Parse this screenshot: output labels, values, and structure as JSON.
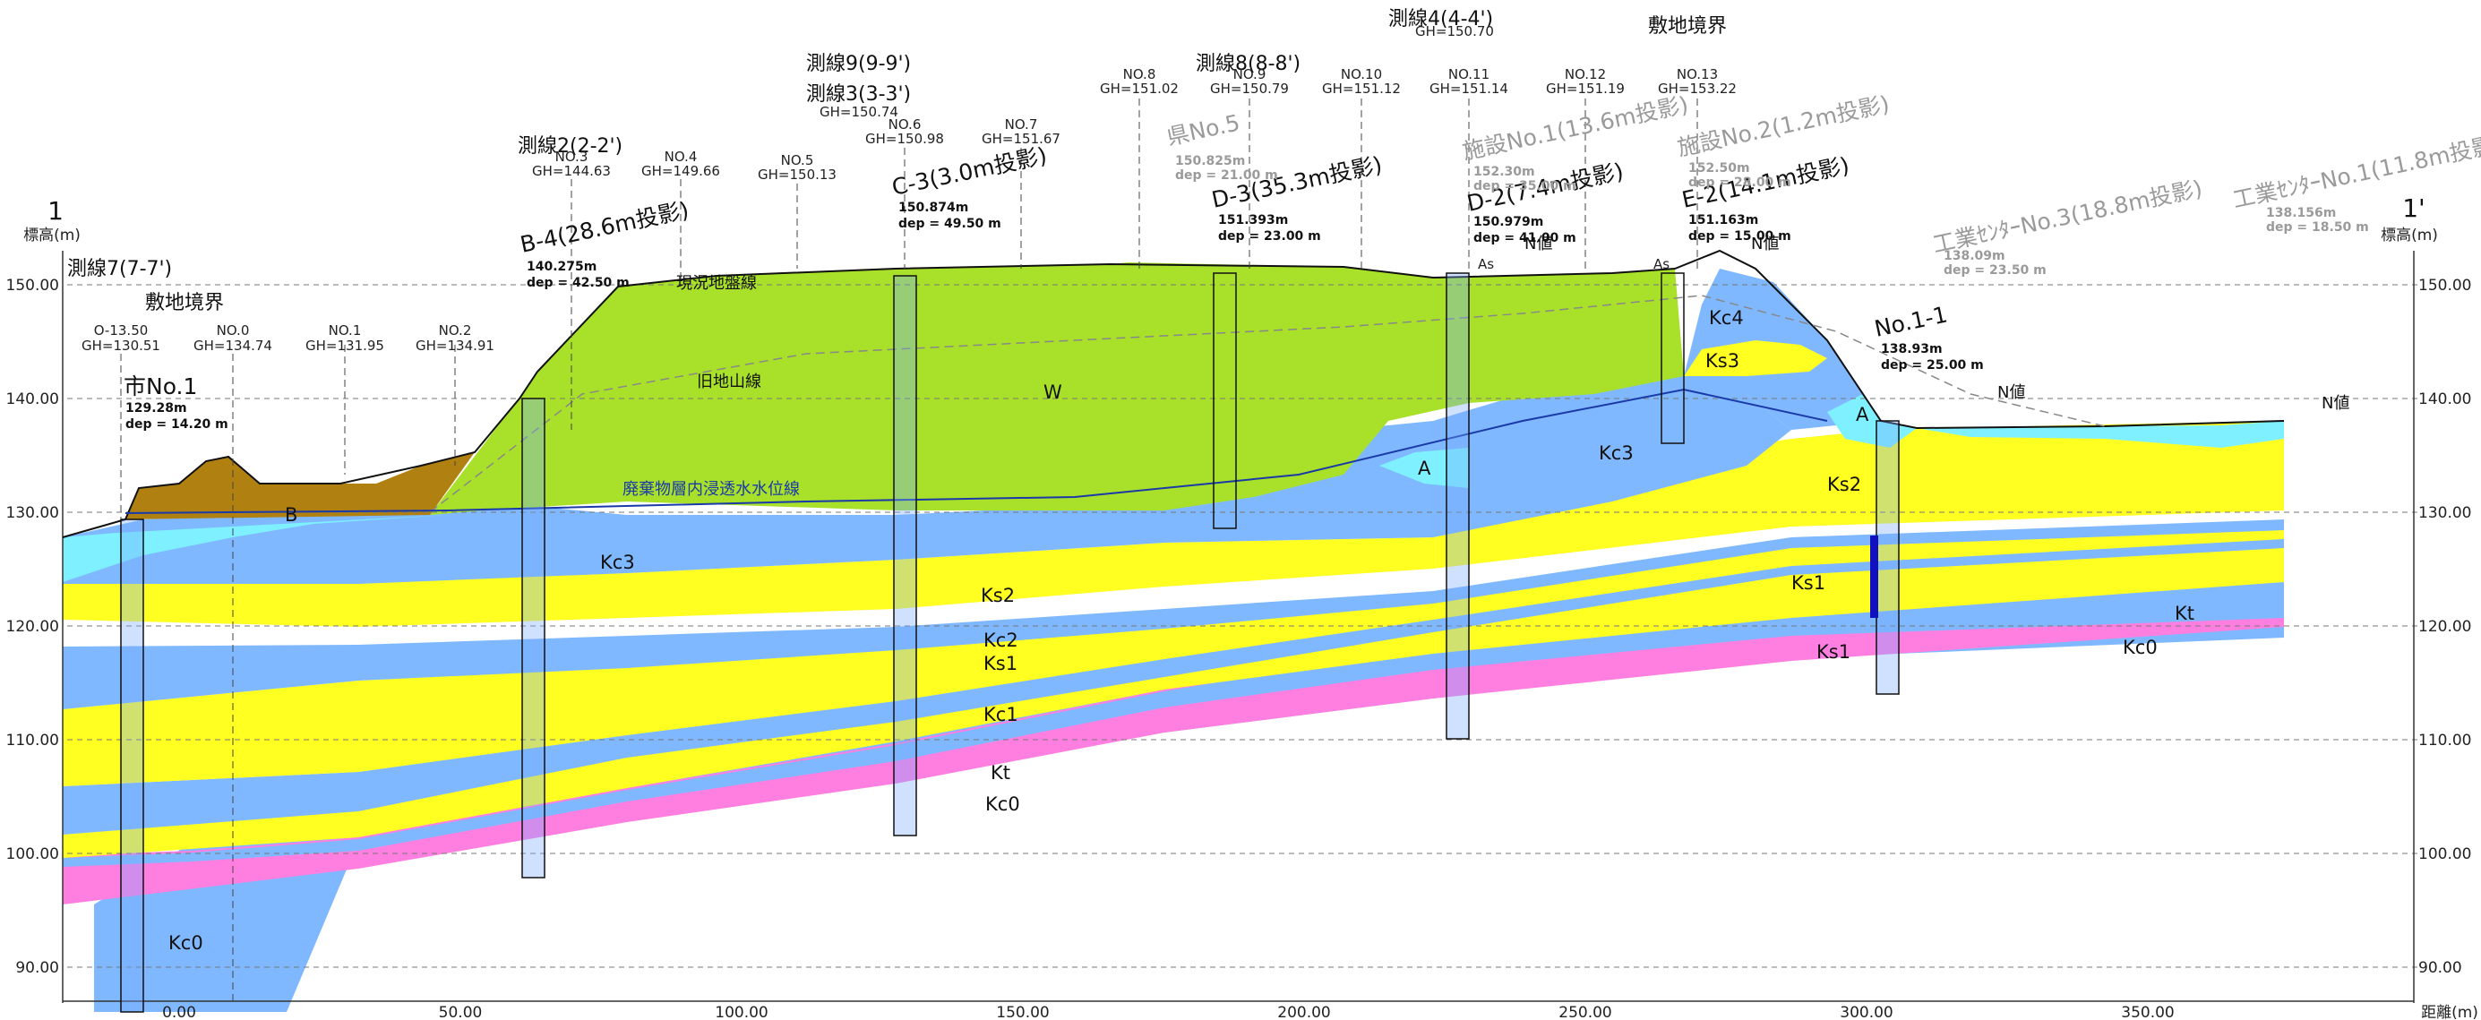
{
  "section": {
    "left_end": "1",
    "right_end": "1'",
    "elevation_unit_left": "標高(m)",
    "elevation_unit_right": "標高(m)",
    "distance_unit": "距離(m)",
    "elevation_ticks": [
      "150.00",
      "140.00",
      "130.00",
      "120.00",
      "110.00",
      "100.00",
      "90.00"
    ],
    "distance_ticks": [
      "0.00",
      "50.00",
      "100.00",
      "150.00",
      "200.00",
      "250.00",
      "300.00",
      "350.00"
    ]
  },
  "cross_lines": [
    {
      "label": "測線7(7-7')"
    },
    {
      "label": "測線2(2-2')"
    },
    {
      "label": "測線9(9-9')"
    },
    {
      "label": "測線3(3-3')"
    },
    {
      "label": "測線8(8-8')"
    },
    {
      "label": "測線4(4-4')"
    }
  ],
  "boundary_labels": [
    "敷地境界",
    "敷地境界"
  ],
  "survey_points": [
    {
      "no": "O-13.50",
      "gh": "GH=130.51"
    },
    {
      "no": "NO.0",
      "gh": "GH=134.74"
    },
    {
      "no": "NO.1",
      "gh": "GH=131.95"
    },
    {
      "no": "NO.2",
      "gh": "GH=134.91"
    },
    {
      "no": "NO.3",
      "gh": "GH=144.63"
    },
    {
      "no": "NO.4",
      "gh": "GH=149.66"
    },
    {
      "no": "NO.5",
      "gh": "GH=150.13"
    },
    {
      "no": "NO.6",
      "gh": "GH=150.98"
    },
    {
      "no": "NO.7",
      "gh": "GH=151.67"
    },
    {
      "no": "NO.8",
      "gh": "GH=151.02"
    },
    {
      "no": "NO.9",
      "gh": "GH=150.79"
    },
    {
      "no": "NO.10",
      "gh": "GH=151.12"
    },
    {
      "no": "NO.11",
      "gh": "GH=151.14"
    },
    {
      "no": "NO.12",
      "gh": "GH=151.19"
    },
    {
      "no": "NO.13",
      "gh": "GH=153.22"
    }
  ],
  "extra_gh": [
    "GH=150.74",
    "GH=150.70"
  ],
  "boreholes": [
    {
      "name": "市No.1",
      "elev": "129.28m",
      "dep": "dep = 14.20 m"
    },
    {
      "name": "B-4(28.6m投影)",
      "elev": "140.275m",
      "dep": "dep = 42.50 m"
    },
    {
      "name": "C-3(3.0m投影)",
      "elev": "150.874m",
      "dep": "dep = 49.50 m"
    },
    {
      "name": "D-3(35.3m投影)",
      "elev": "151.393m",
      "dep": "dep = 23.00 m"
    },
    {
      "name": "D-2(7.4m投影)",
      "elev": "150.979m",
      "dep": "dep = 41.00 m"
    },
    {
      "name": "E-2(14.1m投影)",
      "elev": "151.163m",
      "dep": "dep = 15.00 m"
    },
    {
      "name": "No.1-1",
      "elev": "138.93m",
      "dep": "dep = 25.00 m"
    }
  ],
  "ref_boreholes": [
    {
      "name": "県No.5",
      "elev": "150.825m",
      "dep": "dep = 21.00 m"
    },
    {
      "name": "施設No.1(13.6m投影)",
      "elev": "152.30m",
      "dep": "dep = 35.00 m"
    },
    {
      "name": "施設No.2(1.2m投影)",
      "elev": "152.50m",
      "dep": "dep = 28.00 m"
    },
    {
      "name": "工業ｾﾝﾀｰNo.3(18.8m投影)",
      "elev": "138.09m",
      "dep": "dep = 23.50 m"
    },
    {
      "name": "工業ｾﾝﾀｰNo.1(11.8m投影)",
      "elev": "138.156m",
      "dep": "dep = 18.50 m"
    }
  ],
  "layers": {
    "B": "B",
    "W": "W",
    "A": "A",
    "Kc4": "Kc4",
    "Ks3": "Ks3",
    "Kc3": "Kc3",
    "Ks2": "Ks2",
    "Kc2": "Kc2",
    "Ks1": "Ks1",
    "Kc1": "Kc1",
    "Kt": "Kt",
    "Kc0": "Kc0"
  },
  "annotations": {
    "ground_surface": "現況地盤線",
    "old_ground": "旧地山線",
    "leachate_level": "廃棄物層内浸透水水位線",
    "n_value": "N値",
    "as_label": "As"
  },
  "colors": {
    "waste": "#a8e02a",
    "clay": "#7fb8ff",
    "sand": "#ffff22",
    "tuff": "#ff7fe0",
    "fill": "#b08010",
    "aquifer": "#7ff0ff",
    "water_line": "#1a3aa8"
  }
}
